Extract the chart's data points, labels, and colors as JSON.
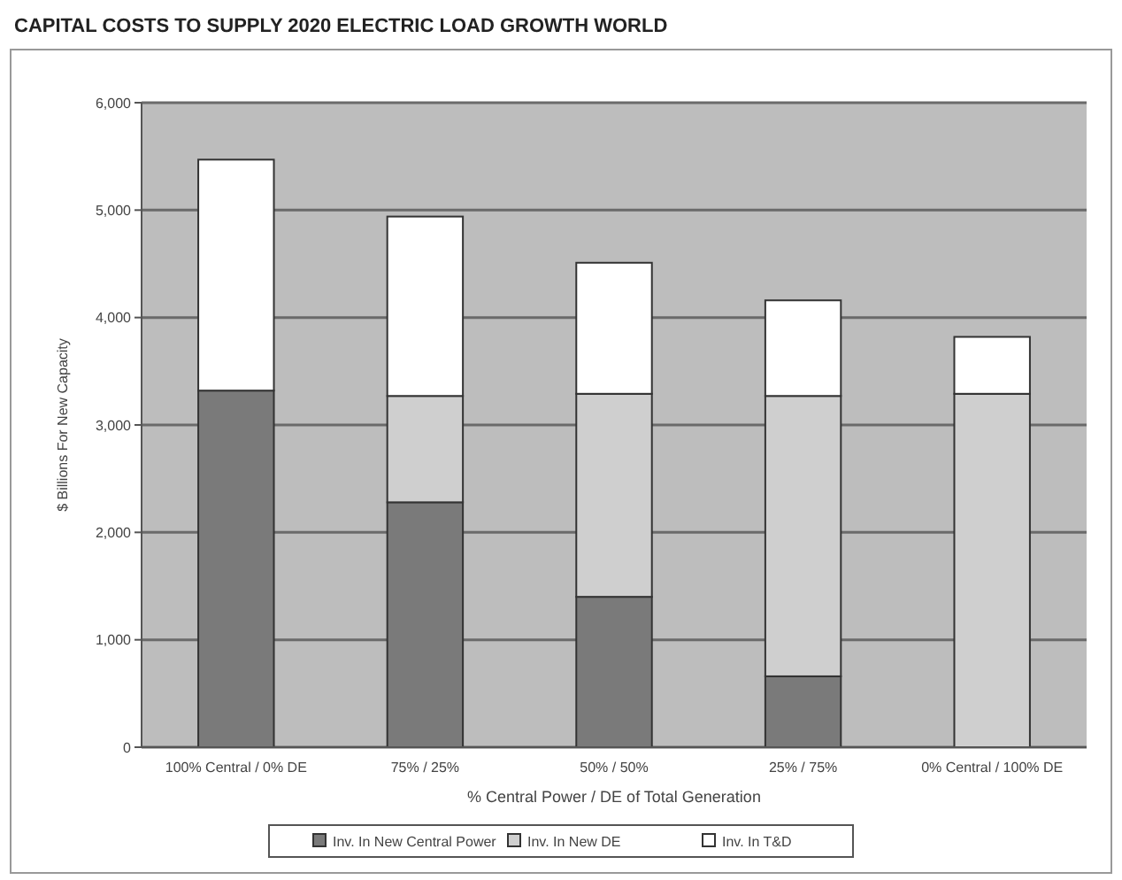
{
  "chart_data": {
    "type": "bar",
    "title": "CAPITAL COSTS TO SUPPLY 2020 ELECTRIC LOAD GROWTH WORLD",
    "xlabel": "% Central Power / DE of Total Generation",
    "ylabel": "$ Billions For New Capacity",
    "categories": [
      "100% Central / 0% DE",
      "75% / 25%",
      "50% / 50%",
      "25% / 75%",
      "0% Central / 100% DE"
    ],
    "stacked": true,
    "series": [
      {
        "name": "Inv. In New Central Power",
        "color": "#7a7a7a",
        "values": [
          3320,
          2280,
          1400,
          660,
          0
        ]
      },
      {
        "name": "Inv. In New DE",
        "color": "#cfcfcf",
        "values": [
          0,
          990,
          1890,
          2610,
          3290
        ]
      },
      {
        "name": "Inv. In T&D",
        "color": "#ffffff",
        "values": [
          2150,
          1670,
          1220,
          890,
          530
        ]
      }
    ],
    "ylim": [
      0,
      6000
    ],
    "yticks": [
      {
        "value": 0,
        "label": "0"
      },
      {
        "value": 1000,
        "label": "1,000"
      },
      {
        "value": 2000,
        "label": "2,000"
      },
      {
        "value": 3000,
        "label": "3,000"
      },
      {
        "value": 4000,
        "label": "4,000"
      },
      {
        "value": 5000,
        "label": "5,000"
      },
      {
        "value": 6000,
        "label": "6,000"
      }
    ],
    "grid": "y",
    "legend": "bottom"
  }
}
